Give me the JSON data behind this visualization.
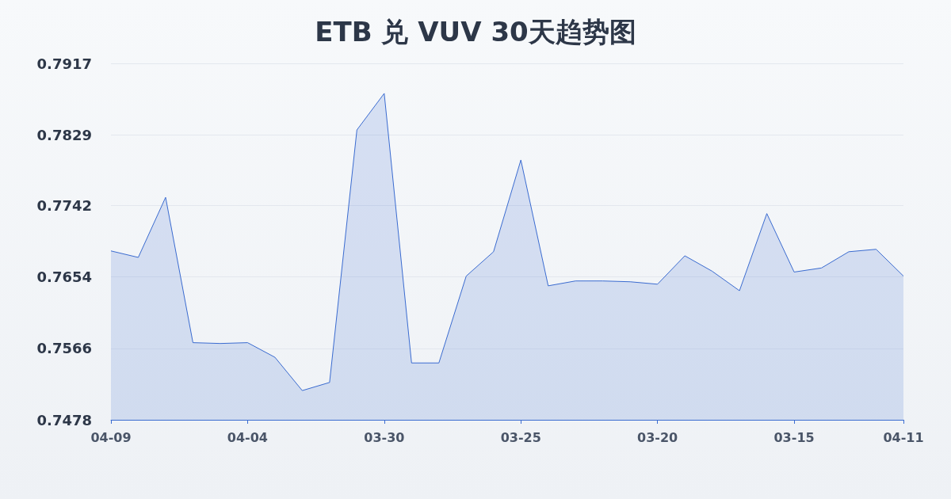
{
  "chart_data": {
    "type": "area",
    "title": "ETB 兑 VUV 30天趋势图",
    "categories": [
      "04-09",
      null,
      null,
      null,
      null,
      "04-04",
      null,
      null,
      null,
      null,
      "03-30",
      null,
      null,
      null,
      null,
      "03-25",
      null,
      null,
      null,
      null,
      "03-20",
      null,
      null,
      null,
      null,
      "03-15",
      null,
      null,
      null,
      "04-11"
    ],
    "series": [
      {
        "color": "#3a6bd0",
        "values": [
          0.7686,
          0.7678,
          0.7752,
          0.7573,
          0.7572,
          0.7573,
          0.7555,
          0.7514,
          0.7524,
          0.7835,
          0.788,
          0.7548,
          0.7548,
          0.7655,
          0.7685,
          0.7798,
          0.7643,
          0.7649,
          0.7649,
          0.7648,
          0.7645,
          0.768,
          0.7661,
          0.7637,
          0.7732,
          0.766,
          0.7665,
          0.7685,
          0.7688,
          0.7655
        ]
      }
    ],
    "ylim": [
      0.7478,
      0.7917
    ],
    "yticks": [
      0.7478,
      0.7566,
      0.7654,
      0.7742,
      0.7829,
      0.7917
    ],
    "grid": "y",
    "marker": "none",
    "line_style": "solid"
  }
}
